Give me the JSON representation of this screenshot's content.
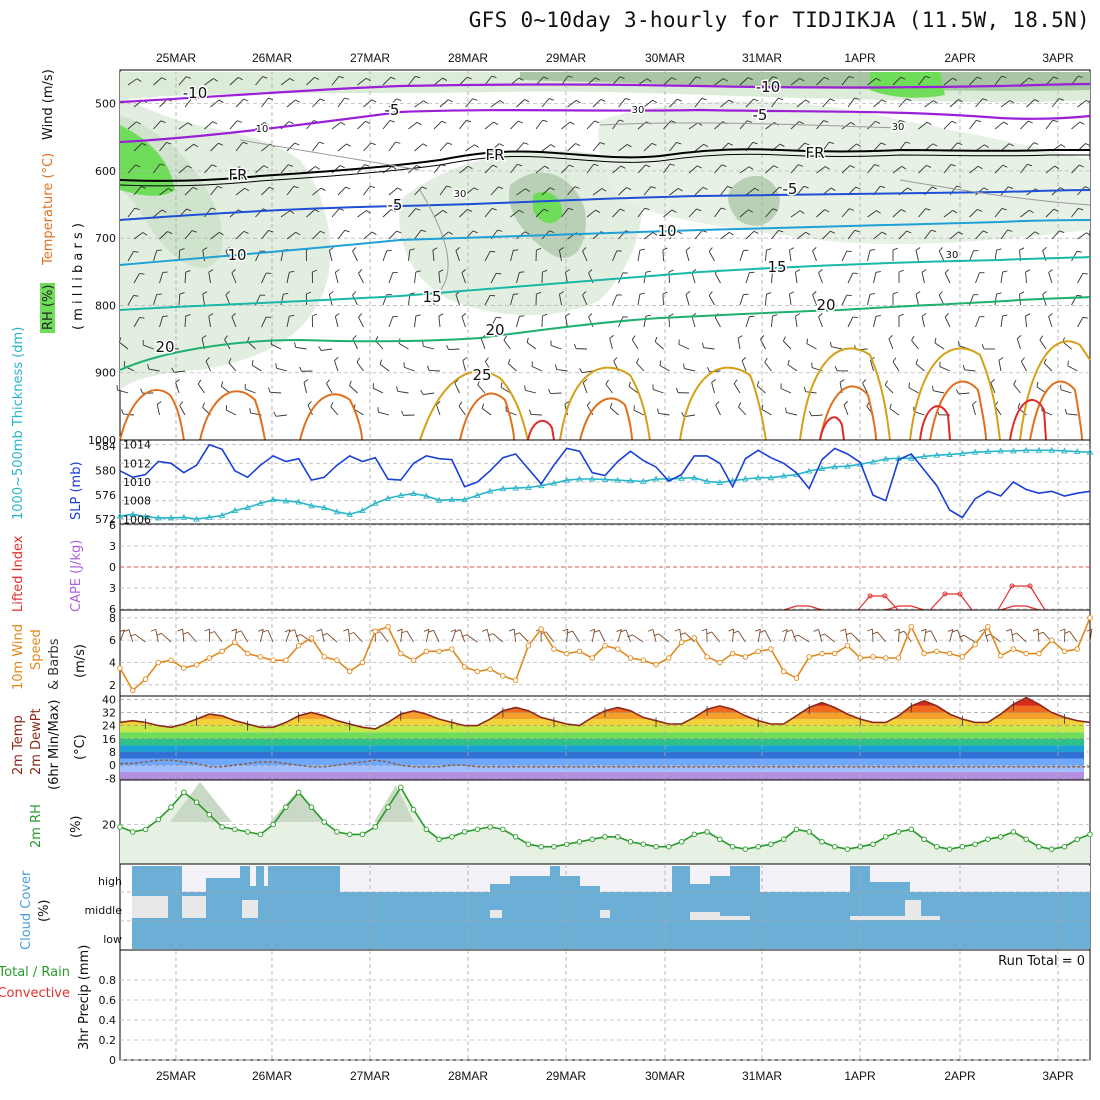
{
  "title": "GFS 0~10day 3-hourly for TIDJIKJA (11.5W, 18.5N)",
  "dates": [
    "25MAR",
    "26MAR",
    "27MAR",
    "28MAR",
    "29MAR",
    "30MAR",
    "31MAR",
    "1APR",
    "2APR",
    "3APR"
  ],
  "panel_labels": {
    "p1_rh": "RH (%)",
    "p1_temp": "Temperature (°C)",
    "p1_wind": "Wind (m/s)",
    "p1_mb": "( m i l l i b a r s )",
    "p2_thick": "1000~500mb Thickness (dm)",
    "p2_slp": "SLP (mb)",
    "p3_li": "Lifted Index",
    "p3_cape": "CAPE (J/kg)",
    "p4_a": "10m Wind",
    "p4_b": "Speed",
    "p4_c": "& Barbs",
    "p4_unit": "(m/s)",
    "p5_a": "2m Temp",
    "p5_b": "2m DewPt",
    "p5_c": "(6hr Min/Max)",
    "p5_unit": "(°C)",
    "p6_a": "2m RH",
    "p6_unit": "(%)",
    "p7_a": "Cloud Cover",
    "p7_unit": "(%)",
    "p8_total": "Total / Rain",
    "p8_conv": "Convective",
    "p8_unit": "3hr Precip (mm)"
  },
  "cloud_levels": [
    "high",
    "middle",
    "low"
  ],
  "run_total": "Run Total = 0",
  "contour_labels": [
    {
      "text": "-10",
      "color": "#8a2be2"
    },
    {
      "text": "-10",
      "color": "#8a2be2"
    },
    {
      "text": "-5",
      "color": "#8a2be2"
    },
    {
      "text": "-5",
      "color": "#8a2be2"
    },
    {
      "text": "FR",
      "color": "#000000"
    },
    {
      "text": "FR",
      "color": "#000000"
    },
    {
      "text": "FR",
      "color": "#000000"
    },
    {
      "text": "-5",
      "color": "#1f4fd6"
    },
    {
      "text": "-5",
      "color": "#1f4fd6"
    },
    {
      "text": "10",
      "color": "#1fa0d6"
    },
    {
      "text": "10",
      "color": "#1fa0d6"
    },
    {
      "text": "15",
      "color": "#19b8a8"
    },
    {
      "text": "15",
      "color": "#19b8a8"
    },
    {
      "text": "20",
      "color": "#1fb070"
    },
    {
      "text": "20",
      "color": "#1fb070"
    },
    {
      "text": "20",
      "color": "#1fb070"
    },
    {
      "text": "25",
      "color": "#d4a017"
    },
    {
      "text": "10",
      "color": "#999999"
    },
    {
      "text": "30",
      "color": "#999999"
    },
    {
      "text": "30",
      "color": "#999999"
    },
    {
      "text": "30",
      "color": "#999999"
    },
    {
      "text": "30",
      "color": "#999999"
    }
  ],
  "colors": {
    "slp": "#1a3fd6",
    "thickness": "#2ab5c8",
    "wind": "#e08a1e",
    "temp": "#8b2a1a",
    "rh": "#2a9a2a",
    "cloud": "#6baed6",
    "cloud_clear": "#f4f1f8"
  },
  "chart_data": [
    {
      "type": "contour",
      "name": "upper-air cross-section",
      "y_ticks": [
        500,
        600,
        700,
        800,
        900,
        1000
      ],
      "y_label": "( m i l l i b a r s )"
    },
    {
      "type": "line",
      "yleft_ticks": [
        572,
        576,
        580,
        584
      ],
      "yright_ticks": [
        1006,
        1008,
        1010,
        1012,
        1014
      ],
      "series": [
        {
          "name": "SLP (mb)",
          "values": [
            1011.2,
            1010.5,
            1010.8,
            1012.2,
            1012.0,
            1011.0,
            1011.8,
            1014.0,
            1013.5,
            1011.2,
            1010.5,
            1011.8,
            1012.8,
            1012.2,
            1012.5,
            1010.2,
            1010.5,
            1011.8,
            1012.8,
            1012.2,
            1012.6,
            1010.3,
            1010.2,
            1012.0,
            1012.8,
            1012.5,
            1012.4,
            1009.5,
            1010.0,
            1011.2,
            1012.6,
            1013.0,
            1011.4,
            1009.8,
            1011.8,
            1013.6,
            1013.3,
            1011.0,
            1010.7,
            1012.2,
            1013.3,
            1012.3,
            1011.6,
            1010.1,
            1010.8,
            1012.8,
            1012.8,
            1012.0,
            1009.5,
            1012.5,
            1013.4,
            1012.6,
            1012.0,
            1011.0,
            1009.3,
            1012.4,
            1013.6,
            1013.0,
            1012.1,
            1008.6,
            1008.0,
            1012.4,
            1013.0,
            1011.3,
            1009.6,
            1007.0,
            1006.2,
            1008.2,
            1009.0,
            1008.5,
            1010.0,
            1009.2,
            1008.8,
            1009.0,
            1008.5,
            1008.8,
            1009.0
          ]
        },
        {
          "name": "1000~500mb Thickness (dm)",
          "values": [
            572.5,
            572.8,
            572.4,
            572.2,
            572.2,
            572.3,
            572.0,
            572.3,
            572.6,
            573.4,
            573.9,
            574.6,
            575.2,
            575.0,
            574.8,
            574.2,
            573.9,
            573.2,
            572.8,
            573.4,
            574.6,
            575.4,
            575.9,
            576.2,
            575.8,
            575.1,
            575.2,
            575.2,
            575.9,
            576.6,
            577.0,
            577.1,
            577.2,
            577.5,
            577.9,
            578.4,
            578.6,
            578.6,
            578.5,
            578.4,
            578.3,
            578.2,
            578.6,
            578.6,
            578.7,
            578.8,
            578.2,
            578.0,
            578.3,
            578.6,
            578.8,
            578.8,
            579.1,
            579.3,
            579.9,
            580.3,
            580.6,
            580.7,
            581.0,
            581.4,
            581.9,
            582.0,
            582.0,
            582.3,
            582.5,
            582.6,
            582.8,
            583.0,
            583.1,
            583.2,
            583.2,
            583.3,
            583.3,
            583.3,
            583.2,
            583.1,
            583.0
          ]
        }
      ]
    },
    {
      "type": "line",
      "y_ticks": [
        -6,
        -3,
        0,
        3,
        6
      ],
      "y_range": [
        -6,
        6
      ],
      "series": [
        {
          "name": "Lifted Index",
          "values": [
            6.5,
            6.5,
            6.5,
            6.5,
            6.5,
            6.5,
            6.5,
            6.5,
            6.5,
            6.5,
            6.5,
            6.5,
            6.5,
            6.5,
            6.5,
            6.5,
            6.5,
            6.5,
            6.5,
            6.5,
            6.5,
            6.5,
            6.5,
            6.5,
            6.5,
            6.5,
            6.5,
            6.5,
            6.5,
            6.5,
            6.5,
            6.5,
            6.5,
            6.5,
            6.5,
            6.5,
            6.5,
            6.5,
            6.5,
            6.5,
            6.5,
            6.5,
            6.5,
            6.5,
            6.5,
            6.5,
            6.5,
            6.5,
            6.5,
            6.5,
            6.5,
            6.5,
            6.5,
            6.5,
            6.5,
            6.5,
            6.5,
            6.5,
            6.5,
            5.8,
            5.8,
            6.5,
            6.5,
            6.5,
            6.5,
            6.5,
            6.5,
            6.5,
            6.5,
            6.5,
            6.5,
            6.5,
            6.5,
            6.5,
            6.5,
            6.5,
            6.5
          ]
        }
      ]
    },
    {
      "type": "line",
      "y_ticks": [
        2,
        4,
        6,
        8
      ],
      "series": [
        {
          "name": "10m Wind Speed",
          "values": [
            3.5,
            1.5,
            2.5,
            4.0,
            4.2,
            3.5,
            3.8,
            4.4,
            5.0,
            5.8,
            4.8,
            4.5,
            4.2,
            4.2,
            5.5,
            6.2,
            4.5,
            4.2,
            3.2,
            4.0,
            6.8,
            7.2,
            4.8,
            4.2,
            5.0,
            5.0,
            5.2,
            3.6,
            3.2,
            3.4,
            2.8,
            2.4,
            5.5,
            7.0,
            5.2,
            4.8,
            5.0,
            4.4,
            5.5,
            5.2,
            4.4,
            4.2,
            3.8,
            4.4,
            5.8,
            6.2,
            4.5,
            4.0,
            4.8,
            4.5,
            5.0,
            5.2,
            3.2,
            2.6,
            4.5,
            4.8,
            4.8,
            5.5,
            4.4,
            4.5,
            4.4,
            4.4,
            7.2,
            4.8,
            5.0,
            4.8,
            4.5,
            5.6,
            7.2,
            4.6,
            5.2,
            4.8,
            4.8,
            6.0,
            5.0,
            5.2,
            8.0
          ]
        }
      ]
    },
    {
      "type": "area",
      "y_ticks": [
        -8,
        0,
        8,
        16,
        24,
        32,
        40
      ],
      "series": [
        {
          "name": "2m Temp",
          "values": [
            26,
            27,
            26,
            24,
            23,
            25,
            28,
            31,
            30,
            27,
            25,
            23,
            23,
            26,
            30,
            32,
            30,
            27,
            25,
            23,
            22,
            26,
            31,
            33,
            31,
            28,
            26,
            24,
            24,
            28,
            33,
            35,
            33,
            29,
            27,
            25,
            24,
            29,
            33,
            35,
            33,
            29,
            27,
            25,
            25,
            29,
            34,
            36,
            34,
            30,
            27,
            25,
            25,
            30,
            35,
            38,
            35,
            31,
            28,
            26,
            26,
            30,
            36,
            39,
            36,
            31,
            28,
            26,
            26,
            31,
            37,
            41,
            37,
            32,
            29,
            27,
            26
          ]
        },
        {
          "name": "2m DewPt",
          "values": [
            1,
            1,
            2,
            3,
            3,
            2,
            1,
            -1,
            -1,
            0,
            1,
            2,
            2,
            1,
            0,
            -1,
            -1,
            0,
            1,
            2,
            3,
            2,
            0,
            -1,
            -1,
            -1,
            0,
            0,
            -1,
            -1,
            -1,
            -1,
            -1,
            -1,
            -1,
            -1,
            -1,
            -1,
            -1,
            -1,
            -1,
            -1,
            -1,
            -1,
            -1,
            -1,
            -1,
            -1,
            -1,
            -1,
            -1,
            -1,
            -1,
            -1,
            -1,
            -1,
            -1,
            -1,
            -1,
            -1,
            -1,
            -1,
            -1,
            -1,
            -1,
            -1,
            -1,
            -1,
            -1,
            -1,
            -1,
            -1,
            -1,
            -1,
            -1,
            -1,
            -1
          ]
        }
      ]
    },
    {
      "type": "area",
      "y_ticks": [
        20
      ],
      "series": [
        {
          "name": "2m RH",
          "values": [
            19,
            17,
            18,
            22,
            27,
            33,
            29,
            24,
            19,
            18,
            17,
            16,
            20,
            27,
            33,
            27,
            21,
            17,
            16,
            16,
            19,
            27,
            35,
            26,
            18,
            14,
            15,
            17,
            18,
            19,
            18,
            15,
            12,
            11,
            11,
            12,
            13,
            14,
            15,
            15,
            13,
            12,
            11,
            11,
            13,
            16,
            17,
            14,
            11,
            10,
            11,
            12,
            14,
            18,
            17,
            13,
            11,
            10,
            11,
            12,
            15,
            17,
            18,
            14,
            11,
            10,
            11,
            12,
            14,
            15,
            17,
            14,
            11,
            10,
            11,
            14,
            16
          ]
        }
      ]
    },
    {
      "type": "heatmap",
      "rows": [
        "high",
        "middle",
        "low"
      ]
    },
    {
      "type": "bar",
      "y_ticks": [
        0,
        0.2,
        0.4,
        0.6,
        0.8
      ],
      "y_range": [
        0,
        1
      ],
      "series": [
        {
          "name": "3hr Precip (mm)",
          "values": [
            0,
            0,
            0,
            0,
            0,
            0,
            0,
            0,
            0,
            0,
            0,
            0,
            0,
            0,
            0,
            0,
            0,
            0,
            0,
            0,
            0,
            0,
            0,
            0,
            0,
            0,
            0,
            0,
            0,
            0,
            0,
            0,
            0,
            0,
            0,
            0,
            0,
            0,
            0,
            0,
            0,
            0,
            0,
            0,
            0,
            0,
            0,
            0,
            0,
            0,
            0,
            0,
            0,
            0,
            0,
            0,
            0,
            0,
            0,
            0,
            0,
            0,
            0,
            0,
            0,
            0,
            0,
            0,
            0,
            0,
            0,
            0,
            0,
            0,
            0,
            0,
            0
          ]
        }
      ]
    }
  ]
}
